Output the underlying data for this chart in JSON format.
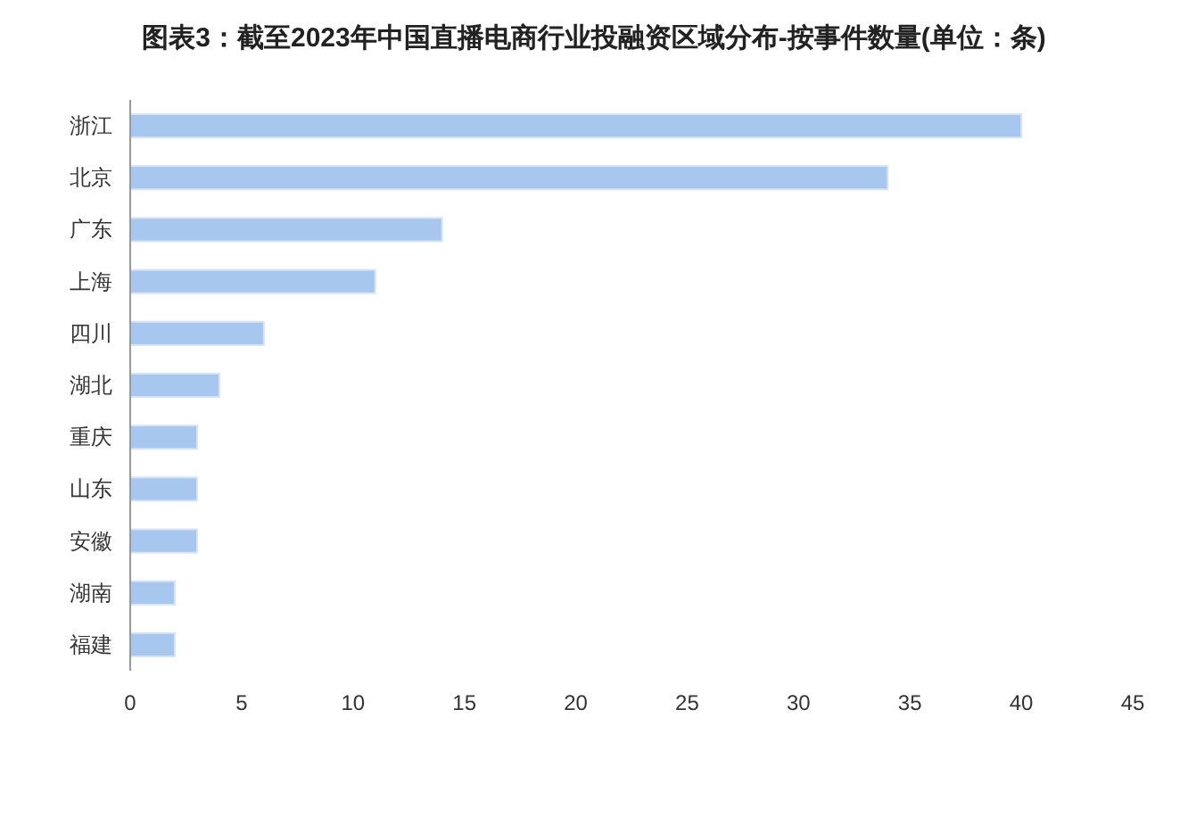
{
  "chart_data": {
    "type": "bar",
    "orientation": "horizontal",
    "title": "图表3：截至2023年中国直播电商行业投融资区域分布-按事件数量(单位：条)",
    "categories": [
      "浙江",
      "北京",
      "广东",
      "上海",
      "四川",
      "湖北",
      "重庆",
      "山东",
      "安徽",
      "湖南",
      "福建"
    ],
    "values": [
      40,
      34,
      14,
      11,
      6,
      4,
      3,
      3,
      3,
      2,
      2
    ],
    "color": "#a7c7ef",
    "xlim": [
      0,
      45
    ],
    "xticks": [
      0,
      5,
      10,
      15,
      20,
      25,
      30,
      35,
      40,
      45
    ]
  }
}
